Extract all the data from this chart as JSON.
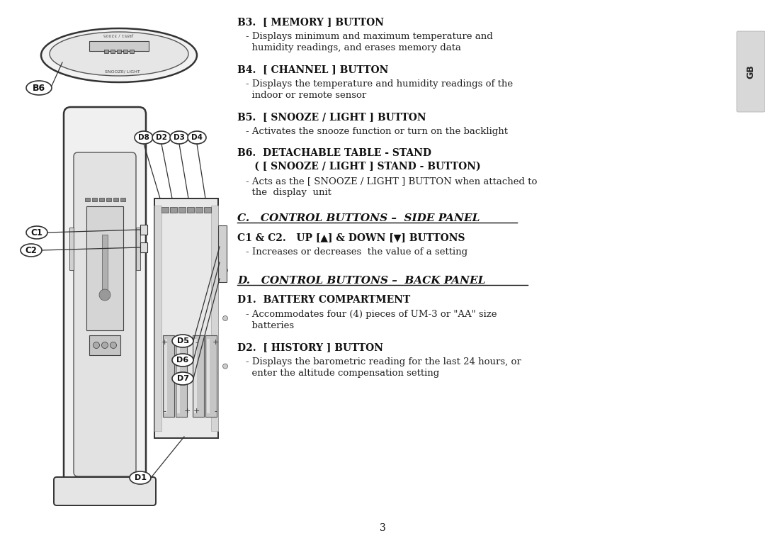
{
  "bg_color": "#ffffff",
  "page_num": "3",
  "tab_label": "GB",
  "tab_bg": "#d8d8d8",
  "sections_b": [
    {
      "heading": "B3.  [ MEMORY ] BUTTON",
      "body": [
        "- Displays minimum and maximum temperature and",
        "  humidity readings, and erases memory data"
      ]
    },
    {
      "heading": "B4.  [ CHANNEL ] BUTTON",
      "body": [
        "- Displays the temperature and humidity readings of the",
        "  indoor or remote sensor"
      ]
    },
    {
      "heading": "B5.  [ SNOOZE / LIGHT ] BUTTON",
      "body": [
        "- Activates the snooze function or turn on the backlight"
      ]
    },
    {
      "heading_lines": [
        "B6.  DETACHABLE TABLE - STAND",
        "     ( [ SNOOZE / LIGHT ] STAND - BUTTON)"
      ],
      "body": [
        "- Acts as the [ SNOOZE / LIGHT ] BUTTON when attached to",
        "  the  display  unit"
      ]
    }
  ],
  "section_c_title": "C.   CONTROL BUTTONS –  SIDE PANEL",
  "section_c": [
    {
      "heading": "C1 & C2.   UP [▲] & DOWN [▼] BUTTONS",
      "body": [
        "- Increases or decreases  the value of a setting"
      ]
    }
  ],
  "section_d_title": "D.   CONTROL BUTTONS –  BACK PANEL",
  "section_d": [
    {
      "heading": "D1.  BATTERY COMPARTMENT",
      "body": [
        "- Accommodates four (4) pieces of UM-3 or \"AA\" size",
        "  batteries"
      ]
    },
    {
      "heading": "D2.  [ HISTORY ] BUTTON",
      "body": [
        "- Displays the barometric reading for the last 24 hours, or",
        "  enter the altitude compensation setting"
      ]
    }
  ]
}
